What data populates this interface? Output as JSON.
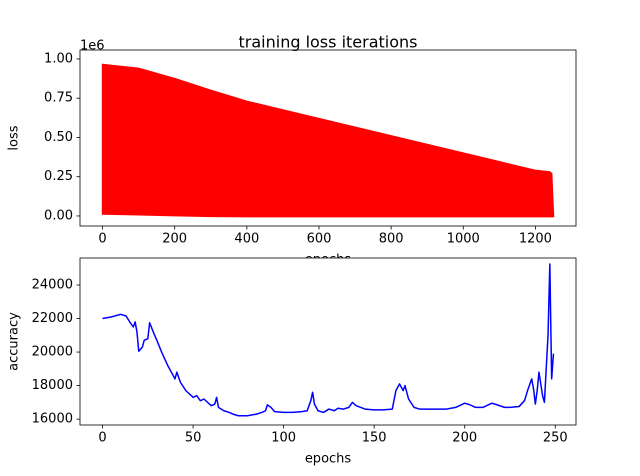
{
  "chart_data": [
    {
      "type": "area",
      "title": "training loss iterations",
      "xlabel": "epochs",
      "ylabel": "loss",
      "offset_text": "1e6",
      "color": "#ff0000",
      "x": [
        0,
        100,
        200,
        300,
        400,
        500,
        600,
        700,
        800,
        900,
        1000,
        1100,
        1200,
        1240,
        1245,
        1250
      ],
      "upper": [
        0.965,
        0.94,
        0.875,
        0.8,
        0.73,
        0.675,
        0.62,
        0.565,
        0.51,
        0.455,
        0.4,
        0.345,
        0.29,
        0.28,
        0.27,
        0.005
      ],
      "lower": [
        0.012,
        0.008,
        0.002,
        -0.003,
        -0.004,
        -0.004,
        -0.004,
        -0.004,
        -0.004,
        -0.004,
        -0.004,
        -0.004,
        -0.004,
        -0.004,
        -0.004,
        -0.004
      ],
      "xlim": [
        -62.5,
        1312.5
      ],
      "ylim": [
        -0.064,
        1.057
      ],
      "xticks": [
        0,
        200,
        400,
        600,
        800,
        1000,
        1200
      ],
      "yticks": [
        {
          "value": 0,
          "label": "0.00"
        },
        {
          "value": 0.25,
          "label": "0.25"
        },
        {
          "value": 0.5,
          "label": "0.50"
        },
        {
          "value": 0.75,
          "label": "0.75"
        },
        {
          "value": 1,
          "label": "1.00"
        }
      ]
    },
    {
      "type": "line",
      "xlabel": "epochs",
      "ylabel": "accuracy",
      "color": "#0000ff",
      "x": [
        0,
        5,
        10,
        13,
        15,
        17,
        18,
        19,
        20,
        22,
        23,
        25,
        26,
        28,
        30,
        33,
        36,
        38,
        40,
        41,
        43,
        46,
        50,
        52,
        54,
        56,
        58,
        60,
        62,
        63,
        64,
        67,
        70,
        72,
        75,
        80,
        85,
        88,
        90,
        91,
        93,
        95,
        100,
        105,
        110,
        113,
        115,
        116,
        117,
        119,
        122,
        125,
        128,
        130,
        133,
        136,
        138,
        140,
        145,
        150,
        155,
        160,
        162,
        164,
        166,
        167,
        169,
        172,
        175,
        180,
        185,
        190,
        195,
        200,
        203,
        206,
        210,
        215,
        218,
        222,
        225,
        230,
        233,
        235,
        237,
        238,
        239,
        240,
        241,
        243,
        244,
        246,
        247,
        248,
        249
      ],
      "values": [
        22000,
        22100,
        22250,
        22150,
        21800,
        21500,
        21800,
        21200,
        20050,
        20300,
        20700,
        20800,
        21750,
        21200,
        20700,
        19900,
        19200,
        18800,
        18400,
        18800,
        18200,
        17700,
        17300,
        17400,
        17100,
        17200,
        17000,
        16800,
        16900,
        17300,
        16700,
        16500,
        16400,
        16300,
        16200,
        16200,
        16300,
        16400,
        16500,
        16850,
        16700,
        16450,
        16400,
        16400,
        16450,
        16500,
        17100,
        17600,
        16900,
        16500,
        16400,
        16600,
        16500,
        16650,
        16600,
        16700,
        17000,
        16800,
        16600,
        16550,
        16550,
        16600,
        17700,
        18100,
        17700,
        18000,
        17200,
        16700,
        16600,
        16600,
        16600,
        16600,
        16700,
        16950,
        16850,
        16700,
        16700,
        16950,
        16850,
        16700,
        16700,
        16750,
        17100,
        17800,
        18400,
        17800,
        16900,
        17700,
        18800,
        17400,
        17000,
        21000,
        25250,
        18400,
        19900
      ],
      "xlim": [
        -12.45,
        261.45
      ],
      "ylim": [
        15650,
        25610
      ],
      "xticks": [
        0,
        50,
        100,
        150,
        200,
        250
      ],
      "yticks": [
        16000,
        18000,
        20000,
        22000,
        24000
      ]
    }
  ]
}
